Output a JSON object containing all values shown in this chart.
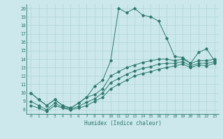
{
  "xlabel": "Humidex (Indice chaleur)",
  "xlim": [
    -0.5,
    23.5
  ],
  "ylim": [
    7.5,
    20.5
  ],
  "xticks": [
    0,
    1,
    2,
    3,
    4,
    5,
    6,
    7,
    8,
    9,
    10,
    11,
    12,
    13,
    14,
    15,
    16,
    17,
    18,
    19,
    20,
    21,
    22,
    23
  ],
  "yticks": [
    8,
    9,
    10,
    11,
    12,
    13,
    14,
    15,
    16,
    17,
    18,
    19,
    20
  ],
  "bg_color": "#cce8ec",
  "line_color": "#2d7a6e",
  "grid_color": "#aed4d8",
  "series": [
    [
      10.0,
      9.2,
      8.5,
      9.2,
      8.5,
      8.2,
      8.8,
      9.5,
      10.8,
      11.5,
      13.8,
      20.0,
      19.5,
      20.0,
      19.2,
      19.0,
      18.5,
      16.5,
      14.3,
      14.2,
      13.5,
      14.8,
      15.2,
      13.8
    ],
    [
      10.0,
      9.2,
      8.5,
      9.2,
      8.5,
      8.2,
      8.8,
      9.5,
      9.8,
      10.5,
      12.0,
      12.5,
      13.0,
      13.3,
      13.6,
      13.8,
      14.0,
      14.0,
      13.8,
      14.0,
      13.5,
      13.8,
      13.8,
      14.0
    ],
    [
      8.5,
      8.2,
      7.8,
      8.5,
      8.2,
      8.0,
      8.2,
      8.5,
      9.0,
      9.5,
      10.5,
      11.0,
      11.5,
      12.0,
      12.3,
      12.5,
      12.8,
      13.0,
      13.2,
      13.4,
      13.0,
      13.3,
      13.2,
      13.5
    ],
    [
      9.0,
      8.5,
      8.0,
      8.8,
      8.3,
      8.1,
      8.4,
      8.9,
      9.3,
      10.0,
      11.2,
      11.7,
      12.2,
      12.6,
      12.9,
      13.1,
      13.4,
      13.5,
      13.5,
      13.7,
      13.2,
      13.5,
      13.5,
      13.7
    ]
  ]
}
